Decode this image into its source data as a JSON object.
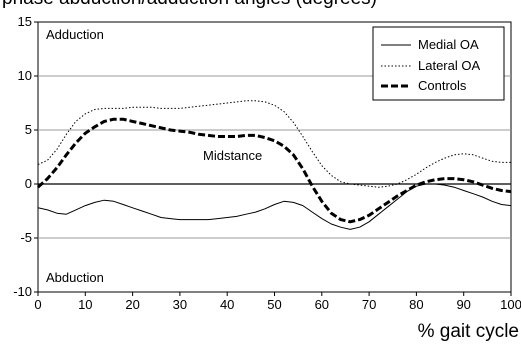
{
  "chart_data": {
    "type": "line",
    "title": "phase abduction/adduction angles (degrees)",
    "xlabel": "% gait cycle",
    "ylabel": "",
    "xlim": [
      0,
      100
    ],
    "ylim": [
      -10,
      15
    ],
    "xticks": [
      0,
      10,
      20,
      30,
      40,
      50,
      60,
      70,
      80,
      90,
      100
    ],
    "yticks": [
      -10,
      -5,
      0,
      5,
      10,
      15
    ],
    "grid": "horizontal",
    "legend": "top-right",
    "annotations": [
      {
        "text": "Adduction"
      },
      {
        "text": "Abduction"
      },
      {
        "text": "Midstance"
      }
    ],
    "series": [
      {
        "name": "Medial OA",
        "style": "solid",
        "x": [
          0,
          2,
          4,
          6,
          8,
          10,
          12,
          14,
          16,
          18,
          20,
          22,
          24,
          26,
          28,
          30,
          32,
          34,
          36,
          38,
          40,
          42,
          44,
          46,
          48,
          50,
          52,
          54,
          56,
          58,
          60,
          62,
          64,
          66,
          68,
          70,
          72,
          74,
          76,
          78,
          80,
          82,
          84,
          86,
          88,
          90,
          92,
          94,
          96,
          98,
          100
        ],
        "values": [
          -2.2,
          -2.4,
          -2.7,
          -2.8,
          -2.4,
          -2.0,
          -1.7,
          -1.5,
          -1.6,
          -1.9,
          -2.2,
          -2.5,
          -2.8,
          -3.1,
          -3.2,
          -3.3,
          -3.3,
          -3.3,
          -3.3,
          -3.2,
          -3.1,
          -3.0,
          -2.8,
          -2.6,
          -2.3,
          -1.9,
          -1.6,
          -1.7,
          -2.0,
          -2.6,
          -3.2,
          -3.7,
          -4.0,
          -4.2,
          -4.0,
          -3.5,
          -2.8,
          -2.1,
          -1.4,
          -0.7,
          -0.2,
          0.0,
          0.0,
          -0.1,
          -0.3,
          -0.6,
          -0.9,
          -1.2,
          -1.6,
          -1.9,
          -2.0
        ]
      },
      {
        "name": "Lateral OA",
        "style": "dotted",
        "x": [
          0,
          2,
          4,
          6,
          8,
          10,
          12,
          14,
          16,
          18,
          20,
          22,
          24,
          26,
          28,
          30,
          32,
          34,
          36,
          38,
          40,
          42,
          44,
          46,
          48,
          50,
          52,
          54,
          56,
          58,
          60,
          62,
          64,
          66,
          68,
          70,
          72,
          74,
          76,
          78,
          80,
          82,
          84,
          86,
          88,
          90,
          92,
          94,
          96,
          98,
          100
        ],
        "values": [
          1.8,
          2.2,
          3.2,
          4.6,
          5.8,
          6.5,
          6.9,
          7.0,
          7.0,
          7.0,
          7.1,
          7.1,
          7.1,
          7.0,
          7.0,
          7.0,
          7.1,
          7.2,
          7.3,
          7.4,
          7.5,
          7.6,
          7.7,
          7.7,
          7.6,
          7.3,
          6.7,
          5.7,
          4.4,
          3.0,
          1.7,
          0.8,
          0.2,
          0.0,
          -0.1,
          -0.2,
          -0.3,
          -0.2,
          0.0,
          0.4,
          0.9,
          1.5,
          2.0,
          2.4,
          2.7,
          2.8,
          2.7,
          2.4,
          2.1,
          2.0,
          2.0
        ]
      },
      {
        "name": "Controls",
        "style": "dashed-bold",
        "x": [
          0,
          2,
          4,
          6,
          8,
          10,
          12,
          14,
          16,
          18,
          20,
          22,
          24,
          26,
          28,
          30,
          32,
          34,
          36,
          38,
          40,
          42,
          44,
          46,
          48,
          50,
          52,
          54,
          56,
          58,
          60,
          62,
          64,
          66,
          68,
          70,
          72,
          74,
          76,
          78,
          80,
          82,
          84,
          86,
          88,
          90,
          92,
          94,
          96,
          98,
          100
        ],
        "values": [
          -0.3,
          0.5,
          1.5,
          2.7,
          3.8,
          4.7,
          5.3,
          5.8,
          6.0,
          6.0,
          5.8,
          5.6,
          5.4,
          5.2,
          5.0,
          4.9,
          4.8,
          4.6,
          4.5,
          4.4,
          4.4,
          4.4,
          4.5,
          4.5,
          4.3,
          4.0,
          3.5,
          2.7,
          1.4,
          -0.2,
          -1.6,
          -2.7,
          -3.3,
          -3.5,
          -3.3,
          -2.9,
          -2.3,
          -1.7,
          -1.1,
          -0.6,
          -0.1,
          0.2,
          0.4,
          0.5,
          0.5,
          0.4,
          0.2,
          -0.1,
          -0.4,
          -0.6,
          -0.7
        ]
      }
    ]
  }
}
